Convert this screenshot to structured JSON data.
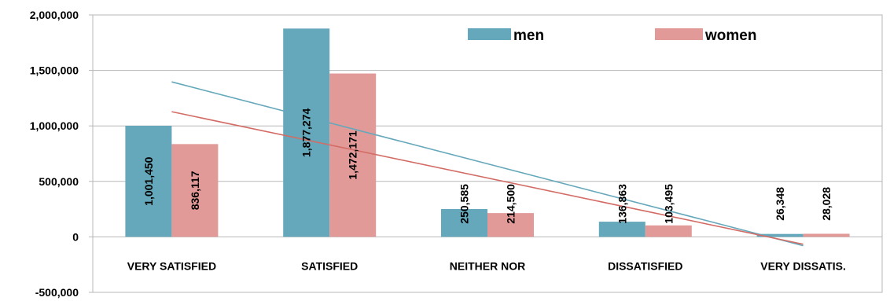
{
  "chart_data": {
    "type": "bar",
    "title": "",
    "xlabel": "",
    "ylabel": "",
    "categories": [
      "VERY SATISFIED",
      "SATISFIED",
      "NEITHER NOR",
      "DISSATISFIED",
      "VERY DISSATIS."
    ],
    "series": [
      {
        "name": "men",
        "color": "#65a8bb",
        "values": [
          1001450,
          1877274,
          250585,
          136863,
          26348
        ],
        "value_labels": [
          "1,001,450",
          "1,877,274",
          "250,585",
          "136,863",
          "26,348"
        ]
      },
      {
        "name": "women",
        "color": "#e29a98",
        "values": [
          836117,
          1472171,
          214500,
          103495,
          28028
        ],
        "value_labels": [
          "836,117",
          "1,472,171",
          "214,500",
          "103,495",
          "28,028"
        ]
      }
    ],
    "trendlines": [
      {
        "series": "men",
        "type": "linear",
        "color": "#65a8bb"
      },
      {
        "series": "women",
        "type": "linear",
        "color": "#d46c66"
      }
    ],
    "ylim": [
      -500000,
      2000000
    ],
    "yticks": [
      2000000,
      1500000,
      1000000,
      500000,
      0,
      -500000
    ],
    "ytick_labels": [
      "2,000,000",
      "1,500,000",
      "1,000,000",
      "500,000",
      "0",
      "-500,000"
    ],
    "grid": true,
    "legend_position": "top-right"
  }
}
